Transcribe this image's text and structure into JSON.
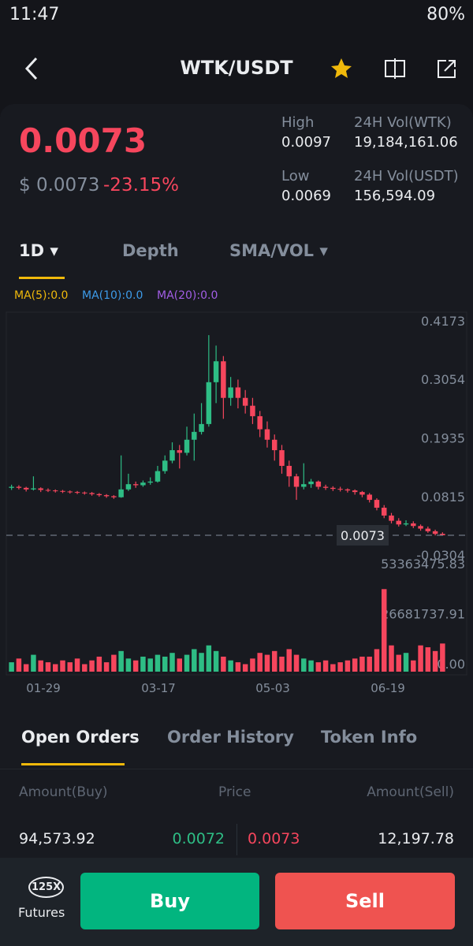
{
  "status_bar": {
    "time": "11:47",
    "battery": "80%"
  },
  "header": {
    "pair": "WTK/USDT"
  },
  "ticker": {
    "price": "0.0073",
    "usd_price": "$ 0.0073",
    "change": "-23.15%",
    "high_label": "High",
    "high": "0.0097",
    "low_label": "Low",
    "low": "0.0069",
    "vol_base_label": "24H Vol(WTK)",
    "vol_base": "19,184,161.06",
    "vol_quote_label": "24H Vol(USDT)",
    "vol_quote": "156,594.09"
  },
  "chart_tabs": [
    "1D",
    "Depth",
    "SMA/VOL"
  ],
  "ma_legend": [
    "MA(5):0.0",
    "MA(10):0.0",
    "MA(20):0.0"
  ],
  "chart": {
    "type": "candlestick",
    "ylim": [
      -0.0304,
      0.4173
    ],
    "yticks": [
      0.4173,
      0.3054,
      0.1935,
      0.0815,
      -0.0304
    ],
    "last_price": 0.0073,
    "candles": [
      [
        0.098,
        0.104,
        0.094,
        0.1
      ],
      [
        0.1,
        0.103,
        0.095,
        0.098
      ],
      [
        0.098,
        0.1,
        0.091,
        0.095
      ],
      [
        0.095,
        0.12,
        0.093,
        0.097
      ],
      [
        0.097,
        0.099,
        0.09,
        0.094
      ],
      [
        0.094,
        0.097,
        0.09,
        0.093
      ],
      [
        0.093,
        0.095,
        0.089,
        0.092
      ],
      [
        0.092,
        0.094,
        0.088,
        0.091
      ],
      [
        0.091,
        0.093,
        0.087,
        0.09
      ],
      [
        0.09,
        0.092,
        0.086,
        0.089
      ],
      [
        0.089,
        0.091,
        0.085,
        0.088
      ],
      [
        0.088,
        0.09,
        0.083,
        0.086
      ],
      [
        0.086,
        0.088,
        0.081,
        0.084
      ],
      [
        0.084,
        0.086,
        0.079,
        0.082
      ],
      [
        0.082,
        0.084,
        0.077,
        0.08
      ],
      [
        0.08,
        0.16,
        0.079,
        0.095
      ],
      [
        0.095,
        0.125,
        0.092,
        0.105
      ],
      [
        0.105,
        0.11,
        0.098,
        0.103
      ],
      [
        0.103,
        0.112,
        0.1,
        0.108
      ],
      [
        0.108,
        0.118,
        0.104,
        0.11
      ],
      [
        0.11,
        0.14,
        0.108,
        0.13
      ],
      [
        0.13,
        0.16,
        0.125,
        0.15
      ],
      [
        0.15,
        0.185,
        0.145,
        0.17
      ],
      [
        0.17,
        0.18,
        0.135,
        0.165
      ],
      [
        0.165,
        0.215,
        0.16,
        0.19
      ],
      [
        0.19,
        0.24,
        0.15,
        0.205
      ],
      [
        0.205,
        0.26,
        0.2,
        0.22
      ],
      [
        0.22,
        0.39,
        0.215,
        0.3
      ],
      [
        0.3,
        0.37,
        0.26,
        0.34
      ],
      [
        0.34,
        0.35,
        0.23,
        0.27
      ],
      [
        0.27,
        0.31,
        0.255,
        0.29
      ],
      [
        0.29,
        0.305,
        0.25,
        0.27
      ],
      [
        0.27,
        0.285,
        0.24,
        0.255
      ],
      [
        0.255,
        0.27,
        0.22,
        0.235
      ],
      [
        0.235,
        0.245,
        0.195,
        0.21
      ],
      [
        0.21,
        0.225,
        0.175,
        0.19
      ],
      [
        0.19,
        0.2,
        0.15,
        0.17
      ],
      [
        0.17,
        0.18,
        0.125,
        0.14
      ],
      [
        0.14,
        0.15,
        0.1,
        0.12
      ],
      [
        0.12,
        0.125,
        0.075,
        0.1
      ],
      [
        0.1,
        0.145,
        0.095,
        0.105
      ],
      [
        0.105,
        0.115,
        0.098,
        0.11
      ],
      [
        0.11,
        0.112,
        0.095,
        0.1
      ],
      [
        0.1,
        0.104,
        0.094,
        0.098
      ],
      [
        0.098,
        0.101,
        0.092,
        0.096
      ],
      [
        0.096,
        0.1,
        0.091,
        0.095
      ],
      [
        0.095,
        0.097,
        0.089,
        0.093
      ],
      [
        0.093,
        0.095,
        0.085,
        0.09
      ],
      [
        0.09,
        0.092,
        0.08,
        0.085
      ],
      [
        0.085,
        0.088,
        0.07,
        0.075
      ],
      [
        0.075,
        0.078,
        0.055,
        0.06
      ],
      [
        0.06,
        0.065,
        0.04,
        0.045
      ],
      [
        0.045,
        0.05,
        0.03,
        0.035
      ],
      [
        0.035,
        0.04,
        0.024,
        0.028
      ],
      [
        0.028,
        0.036,
        0.025,
        0.03
      ],
      [
        0.03,
        0.034,
        0.021,
        0.025
      ],
      [
        0.025,
        0.028,
        0.016,
        0.02
      ],
      [
        0.02,
        0.024,
        0.012,
        0.015
      ],
      [
        0.015,
        0.018,
        0.007,
        0.01
      ],
      [
        0.01,
        0.013,
        0.0069,
        0.0073
      ]
    ],
    "volumes": [
      5000000,
      7000000,
      4000000,
      9000000,
      6000000,
      5000000,
      4000000,
      6000000,
      5000000,
      7000000,
      4000000,
      6000000,
      8000000,
      5000000,
      9000000,
      11000000,
      7000000,
      6000000,
      8000000,
      7000000,
      9000000,
      8000000,
      10000000,
      7000000,
      9000000,
      12000000,
      10000000,
      14000000,
      11000000,
      8000000,
      6000000,
      5000000,
      4000000,
      7000000,
      10000000,
      9000000,
      11000000,
      8000000,
      12000000,
      9000000,
      7000000,
      6000000,
      5000000,
      6000000,
      4000000,
      5000000,
      6000000,
      7000000,
      8000000,
      8000000,
      12000000,
      44000000,
      14000000,
      9000000,
      10000000,
      6000000,
      14000000,
      13000000,
      11000000,
      15000000
    ],
    "vol_ylim": [
      0,
      53363475.83
    ],
    "vol_ticks": [
      53363475.83,
      26681737.91,
      {
        "value": 0,
        "label": "0.00"
      }
    ],
    "x_labels": [
      "01-29",
      "03-17",
      "05-03",
      "06-19"
    ]
  },
  "orders_tabs": [
    "Open Orders",
    "Order History",
    "Token Info"
  ],
  "orders": {
    "headers": [
      "Amount(Buy)",
      "Price",
      "Amount(Sell)"
    ],
    "rows": [
      [
        "94,573.92",
        "0.0072",
        "0.0073",
        "12,197.78"
      ]
    ]
  },
  "bottom_bar": {
    "futures_badge": "125X",
    "futures": "Futures",
    "buy": "Buy",
    "sell": "Sell"
  }
}
